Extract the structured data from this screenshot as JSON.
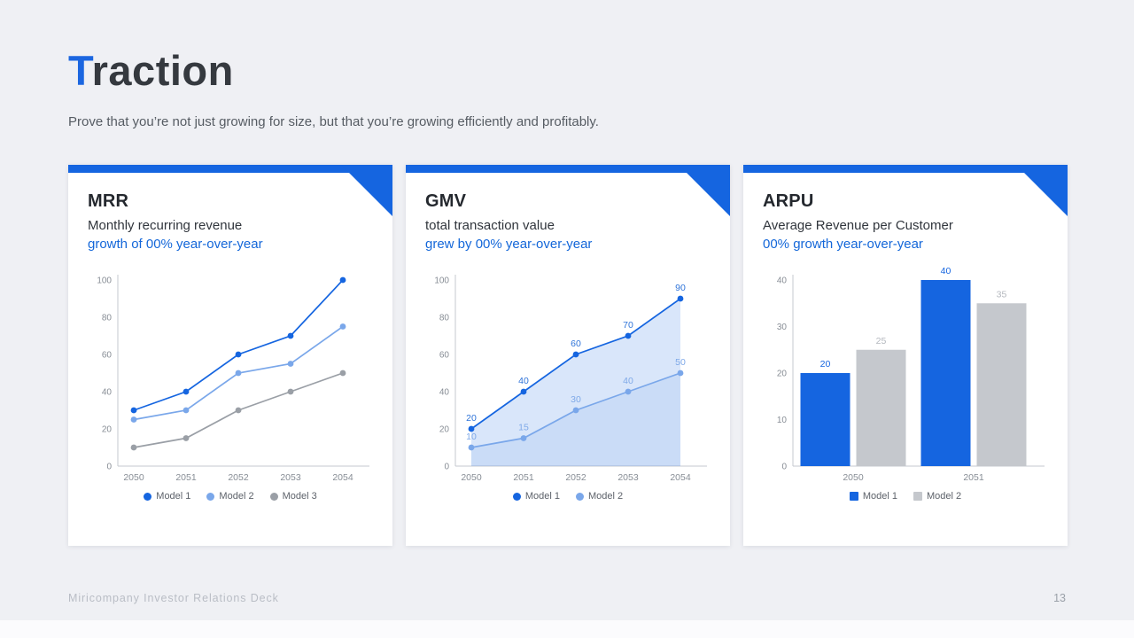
{
  "page": {
    "title_accent": "T",
    "title_rest": "raction",
    "subtitle": "Prove that you’re not just growing for size, but that you’re growing efficiently and profitably.",
    "footer_left": "Miricompany Investor Relations Deck",
    "page_number": "13"
  },
  "colors": {
    "accent_blue": "#1565e0",
    "light_blue": "#7aa7ea",
    "gray_series": "#9a9fa6",
    "gray_bar": "#c5c8cd",
    "background": "#eff0f4"
  },
  "cards": [
    {
      "title": "MRR",
      "subtitle": "Monthly recurring revenue",
      "highlight": "growth of 00% year-over-year"
    },
    {
      "title": "GMV",
      "subtitle": "total transaction value",
      "highlight": "grew by 00% year-over-year"
    },
    {
      "title": "ARPU",
      "subtitle": "Average Revenue per Customer",
      "highlight": "00% growth year-over-year"
    }
  ],
  "chart_data": [
    {
      "type": "line",
      "title": "MRR",
      "x": [
        "2050",
        "2051",
        "2052",
        "2053",
        "2054"
      ],
      "series": [
        {
          "name": "Model 1",
          "color": "#1565e0",
          "values": [
            30,
            40,
            60,
            70,
            100
          ]
        },
        {
          "name": "Model 2",
          "color": "#7aa7ea",
          "values": [
            25,
            30,
            50,
            55,
            75
          ]
        },
        {
          "name": "Model 3",
          "color": "#9a9fa6",
          "values": [
            10,
            15,
            30,
            40,
            50
          ]
        }
      ],
      "ylim": [
        0,
        100
      ],
      "yticks": [
        0,
        20,
        40,
        60,
        80,
        100
      ],
      "grid": false,
      "legend_position": "bottom",
      "legend_marker": "circle"
    },
    {
      "type": "area",
      "title": "GMV",
      "x": [
        "2050",
        "2051",
        "2052",
        "2053",
        "2054"
      ],
      "series": [
        {
          "name": "Model 1",
          "color": "#1565e0",
          "values": [
            20,
            40,
            60,
            70,
            90
          ],
          "fill": true,
          "point_labels": true,
          "label_color": "#2f74d9"
        },
        {
          "name": "Model 2",
          "color": "#7aa7ea",
          "values": [
            10,
            15,
            30,
            40,
            50
          ],
          "fill": true,
          "point_labels": true,
          "label_color": "#7fa9e8"
        }
      ],
      "ylim": [
        0,
        100
      ],
      "yticks": [
        0,
        20,
        40,
        60,
        80,
        100
      ],
      "grid": false,
      "legend_position": "bottom",
      "legend_marker": "circle"
    },
    {
      "type": "bar",
      "title": "ARPU",
      "categories": [
        "2050",
        "2051"
      ],
      "series": [
        {
          "name": "Model 1",
          "color": "#1565e0",
          "values": [
            20,
            40
          ],
          "label_color": "#1565e0"
        },
        {
          "name": "Model 2",
          "color": "#c5c8cd",
          "values": [
            25,
            35
          ],
          "label_color": "#b4b8be"
        }
      ],
      "ylim": [
        0,
        40
      ],
      "yticks": [
        0,
        10,
        20,
        30,
        40
      ],
      "grid": false,
      "value_labels": true,
      "legend_position": "bottom",
      "legend_marker": "square"
    }
  ]
}
